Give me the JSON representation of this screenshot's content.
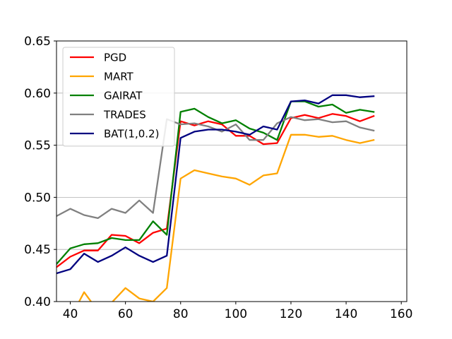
{
  "chart_data": {
    "type": "line",
    "title": "",
    "xlabel": "",
    "ylabel": "",
    "xlim": [
      35,
      162
    ],
    "ylim": [
      0.4,
      0.65
    ],
    "x_ticks": [
      40,
      60,
      80,
      100,
      120,
      140,
      160
    ],
    "x_tick_labels": [
      "40",
      "60",
      "80",
      "100",
      "120",
      "140",
      "160"
    ],
    "y_ticks": [
      0.4,
      0.45,
      0.5,
      0.55,
      0.6,
      0.65
    ],
    "y_tick_labels": [
      "0.40",
      "0.45",
      "0.50",
      "0.55",
      "0.60",
      "0.65"
    ],
    "grid": "horizontal",
    "legend_position": "upper-left",
    "x": [
      35,
      40,
      45,
      50,
      55,
      60,
      65,
      70,
      75,
      80,
      85,
      90,
      95,
      100,
      105,
      110,
      115,
      120,
      125,
      130,
      135,
      140,
      145,
      150
    ],
    "series": [
      {
        "name": "PGD",
        "color": "#ff0000",
        "values": [
          0.433,
          0.443,
          0.449,
          0.449,
          0.464,
          0.463,
          0.456,
          0.466,
          0.47,
          0.573,
          0.569,
          0.573,
          0.57,
          0.559,
          0.559,
          0.551,
          0.552,
          0.576,
          0.579,
          0.576,
          0.58,
          0.578,
          0.573,
          0.578
        ]
      },
      {
        "name": "MART",
        "color": "#ffa500",
        "values": [
          0.378,
          0.384,
          0.409,
          0.391,
          0.399,
          0.413,
          0.403,
          0.4,
          0.413,
          0.518,
          0.526,
          0.523,
          0.52,
          0.518,
          0.512,
          0.521,
          0.523,
          0.56,
          0.56,
          0.558,
          0.559,
          0.555,
          0.552,
          0.555
        ]
      },
      {
        "name": "GAIRAT",
        "color": "#008000",
        "values": [
          0.436,
          0.451,
          0.455,
          0.456,
          0.461,
          0.459,
          0.459,
          0.477,
          0.464,
          0.582,
          0.585,
          0.577,
          0.571,
          0.574,
          0.566,
          0.562,
          0.555,
          0.592,
          0.592,
          0.587,
          0.589,
          0.581,
          0.584,
          0.582
        ]
      },
      {
        "name": "TRADES",
        "color": "#808080",
        "values": [
          0.482,
          0.489,
          0.483,
          0.48,
          0.489,
          0.485,
          0.497,
          0.485,
          0.575,
          0.57,
          0.571,
          0.568,
          0.563,
          0.57,
          0.555,
          0.555,
          0.571,
          0.577,
          0.574,
          0.575,
          0.572,
          0.573,
          0.567,
          0.564
        ]
      },
      {
        "name": "BAT(1,0.2)",
        "color": "#000080",
        "values": [
          0.427,
          0.431,
          0.446,
          0.438,
          0.444,
          0.452,
          0.444,
          0.438,
          0.444,
          0.557,
          0.563,
          0.565,
          0.565,
          0.563,
          0.56,
          0.568,
          0.565,
          0.592,
          0.593,
          0.59,
          0.598,
          0.598,
          0.596,
          0.597
        ]
      }
    ]
  }
}
